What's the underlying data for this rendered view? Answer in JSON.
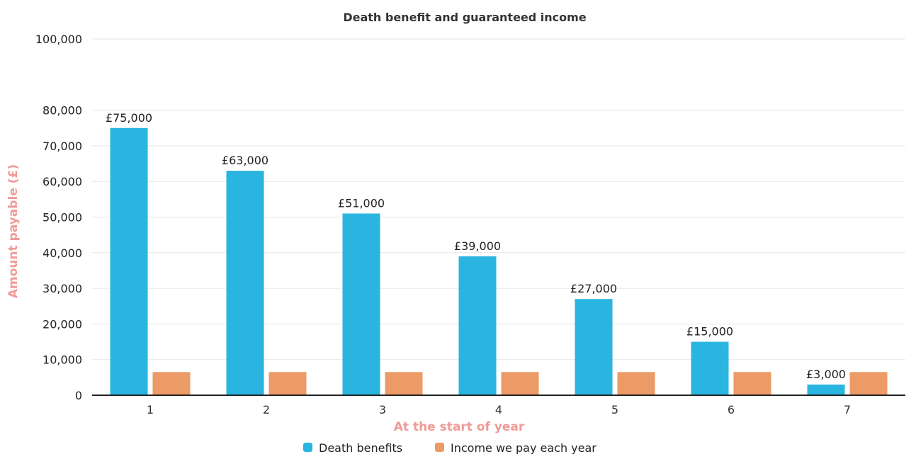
{
  "chart_data": {
    "type": "bar",
    "title": "Death benefit and guaranteed income",
    "xlabel": "At the start of year",
    "ylabel": "Amount payable (£)",
    "categories": [
      "1",
      "2",
      "3",
      "4",
      "5",
      "6",
      "7"
    ],
    "ylim": [
      0,
      100000
    ],
    "yticks": [
      0,
      10000,
      20000,
      30000,
      40000,
      50000,
      60000,
      70000,
      80000,
      100000
    ],
    "ytick_labels": [
      "0",
      "10,000",
      "20,000",
      "30,000",
      "40,000",
      "50,000",
      "60,000",
      "70,000",
      "80,000",
      "100,000"
    ],
    "grid": true,
    "legend_position": "bottom-center",
    "series": [
      {
        "name": "Death benefits",
        "color": "#29B5E0",
        "values": [
          75000,
          63000,
          51000,
          39000,
          27000,
          15000,
          3000
        ],
        "data_labels": [
          "£75,000",
          "£63,000",
          "£51,000",
          "£39,000",
          "£27,000",
          "£15,000",
          "£3,000"
        ]
      },
      {
        "name": "Income we pay each year",
        "color": "#EC9A66",
        "values": [
          6500,
          6500,
          6500,
          6500,
          6500,
          6500,
          6500
        ]
      }
    ],
    "axis_label_color": "#F09A96"
  }
}
